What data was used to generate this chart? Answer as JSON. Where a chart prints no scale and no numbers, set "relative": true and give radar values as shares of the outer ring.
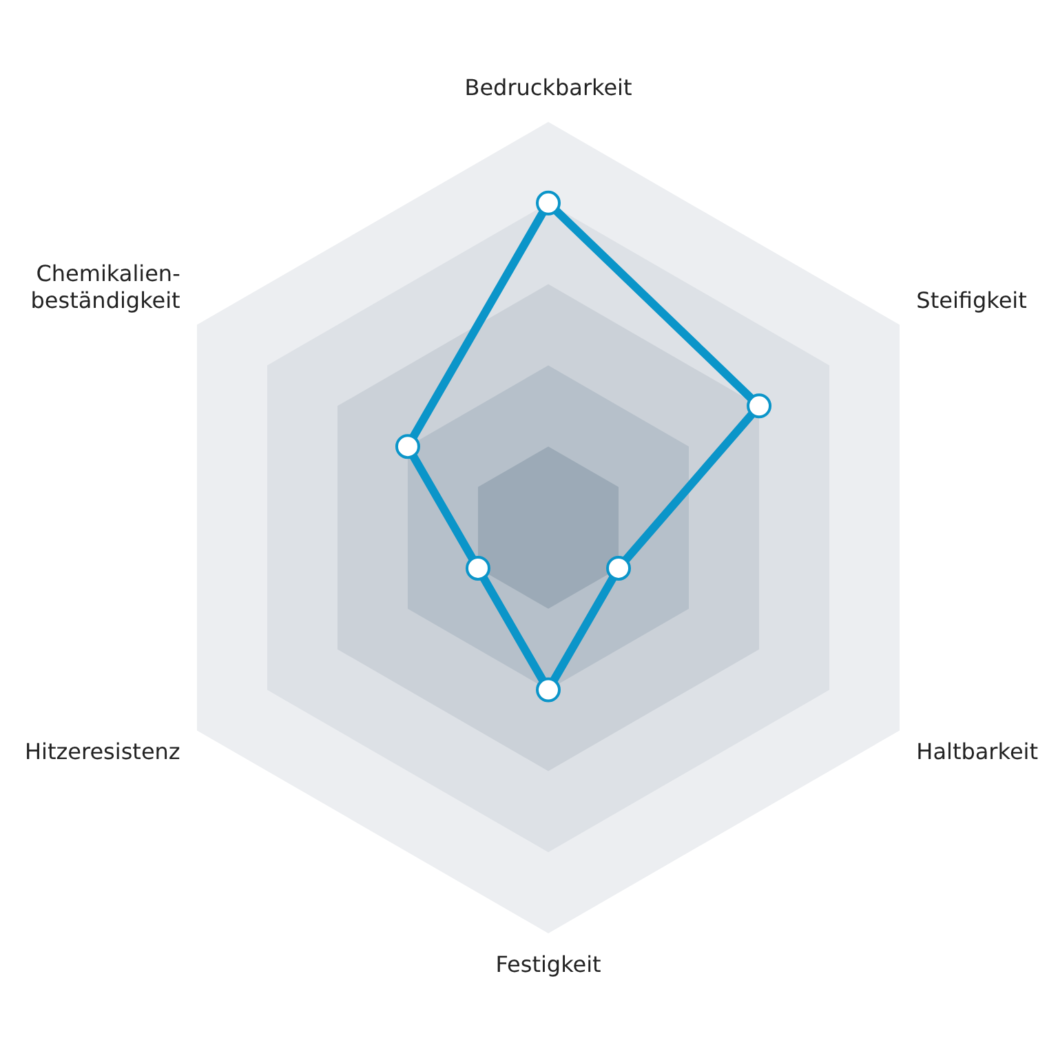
{
  "chart_data": {
    "type": "radar",
    "relative": true,
    "categories": [
      "Bedruckbarkeit",
      "Steifigkeit",
      "Haltbarkeit",
      "Festigkeit",
      "Hitzeresistenz",
      "Chemikalien-beständigkeit"
    ],
    "series": [
      {
        "color": "#0b95c9",
        "values": [
          0.8,
          0.6,
          0.2,
          0.4,
          0.2,
          0.4
        ]
      }
    ],
    "marker": "circle",
    "legend": false
  }
}
